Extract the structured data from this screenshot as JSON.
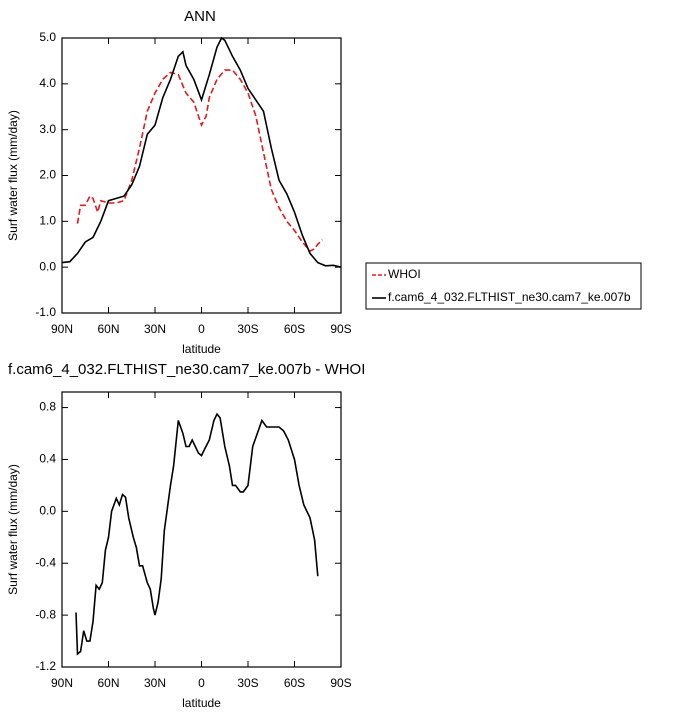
{
  "chart_data": [
    {
      "type": "line",
      "title": "ANN",
      "xlabel": "latitude",
      "ylabel": "Surf water flux (mm/day)",
      "xlim": [
        90,
        -90
      ],
      "xticks": [
        {
          "value": 90,
          "label": "90N"
        },
        {
          "value": 60,
          "label": "60N"
        },
        {
          "value": 30,
          "label": "30N"
        },
        0,
        {
          "value": -30,
          "label": "30S"
        },
        {
          "value": -60,
          "label": "60S"
        },
        {
          "value": -90,
          "label": "90S"
        }
      ],
      "ylim": [
        -1,
        5
      ],
      "yticks": [
        {
          "value": 5,
          "label": "5.0"
        },
        {
          "value": 4,
          "label": "4.0"
        },
        {
          "value": 3,
          "label": "3.0"
        },
        {
          "value": 2,
          "label": "2.0"
        },
        {
          "value": 1,
          "label": "1.0"
        },
        {
          "value": 0,
          "label": "0.0"
        },
        {
          "value": -1,
          "label": "-1.0"
        }
      ],
      "legend": "right",
      "series": [
        {
          "name": "WHOI",
          "color": "#e41a1c",
          "style": "dashed",
          "x": [
            80,
            78,
            75,
            72,
            70,
            67,
            65,
            60,
            55,
            50,
            45,
            40,
            35,
            30,
            25,
            20,
            15,
            10,
            5,
            2,
            0,
            -3,
            -5,
            -10,
            -15,
            -20,
            -25,
            -30,
            -35,
            -40,
            -45,
            -50,
            -55,
            -60,
            -65,
            -70,
            -73,
            -75,
            -78
          ],
          "values": [
            0.95,
            1.35,
            1.35,
            1.55,
            1.5,
            1.2,
            1.45,
            1.4,
            1.4,
            1.45,
            1.9,
            2.6,
            3.4,
            3.8,
            4.1,
            4.25,
            4.2,
            3.8,
            3.6,
            3.3,
            3.1,
            3.3,
            3.7,
            4.1,
            4.3,
            4.3,
            4.1,
            3.8,
            3.3,
            2.5,
            1.7,
            1.3,
            1.0,
            0.8,
            0.55,
            0.35,
            0.4,
            0.5,
            0.6
          ]
        },
        {
          "name": "f.cam6_4_032.FLTHIST_ne30.cam7_ke.007b",
          "color": "#000000",
          "style": "solid",
          "x": [
            90,
            85,
            80,
            75,
            70,
            65,
            60,
            55,
            50,
            45,
            40,
            35,
            30,
            25,
            20,
            15,
            12,
            10,
            5,
            0,
            -5,
            -10,
            -13,
            -15,
            -20,
            -25,
            -30,
            -35,
            -40,
            -45,
            -50,
            -55,
            -60,
            -65,
            -70,
            -75,
            -80,
            -85,
            -90
          ],
          "values": [
            0.1,
            0.12,
            0.3,
            0.55,
            0.65,
            1.0,
            1.45,
            1.5,
            1.55,
            1.8,
            2.2,
            2.9,
            3.1,
            3.7,
            4.1,
            4.6,
            4.7,
            4.4,
            4.1,
            3.65,
            4.2,
            4.8,
            5.0,
            4.95,
            4.6,
            4.3,
            3.9,
            3.65,
            3.4,
            2.6,
            1.9,
            1.6,
            1.2,
            0.7,
            0.3,
            0.1,
            0.03,
            0.04,
            0.0
          ]
        }
      ]
    },
    {
      "type": "line",
      "title": "f.cam6_4_032.FLTHIST_ne30.cam7_ke.007b - WHOI",
      "xlabel": "latitude",
      "ylabel": "Surf water flux (mm/day)",
      "xlim": [
        90,
        -90
      ],
      "xticks": [
        {
          "value": 90,
          "label": "90N"
        },
        {
          "value": 60,
          "label": "60N"
        },
        {
          "value": 30,
          "label": "30N"
        },
        0,
        {
          "value": -30,
          "label": "30S"
        },
        {
          "value": -60,
          "label": "60S"
        },
        {
          "value": -90,
          "label": "90S"
        }
      ],
      "ylim": [
        -1.2,
        0.92
      ],
      "yticks": [
        0.8,
        0.4,
        {
          "value": 0,
          "label": "0.0"
        },
        -0.4,
        -0.8,
        -1.2
      ],
      "color": "#000000",
      "x": [
        81,
        80,
        78,
        76,
        74,
        72,
        70,
        68,
        66,
        64,
        62,
        60,
        58,
        55,
        53,
        51,
        49,
        47,
        44,
        42,
        40,
        38,
        35,
        33,
        31,
        30,
        28,
        26,
        24,
        20,
        18,
        15,
        12,
        10,
        8,
        6,
        4,
        2,
        0,
        -2,
        -5,
        -8,
        -10,
        -12,
        -15,
        -18,
        -20,
        -22,
        -25,
        -27,
        -30,
        -33,
        -36,
        -39,
        -42,
        -45,
        -50,
        -53,
        -56,
        -60,
        -63,
        -66,
        -70,
        -73,
        -75
      ],
      "values": [
        -0.78,
        -1.1,
        -1.08,
        -0.92,
        -1.0,
        -1.0,
        -0.85,
        -0.57,
        -0.6,
        -0.55,
        -0.3,
        -0.2,
        0.0,
        0.1,
        0.05,
        0.13,
        0.11,
        -0.05,
        -0.2,
        -0.28,
        -0.42,
        -0.42,
        -0.55,
        -0.6,
        -0.75,
        -0.8,
        -0.7,
        -0.52,
        -0.15,
        0.2,
        0.35,
        0.7,
        0.6,
        0.5,
        0.5,
        0.55,
        0.5,
        0.45,
        0.43,
        0.48,
        0.55,
        0.7,
        0.75,
        0.72,
        0.5,
        0.35,
        0.2,
        0.2,
        0.15,
        0.15,
        0.2,
        0.5,
        0.6,
        0.7,
        0.65,
        0.65,
        0.65,
        0.62,
        0.55,
        0.4,
        0.2,
        0.05,
        -0.05,
        -0.22,
        -0.5
      ]
    }
  ]
}
